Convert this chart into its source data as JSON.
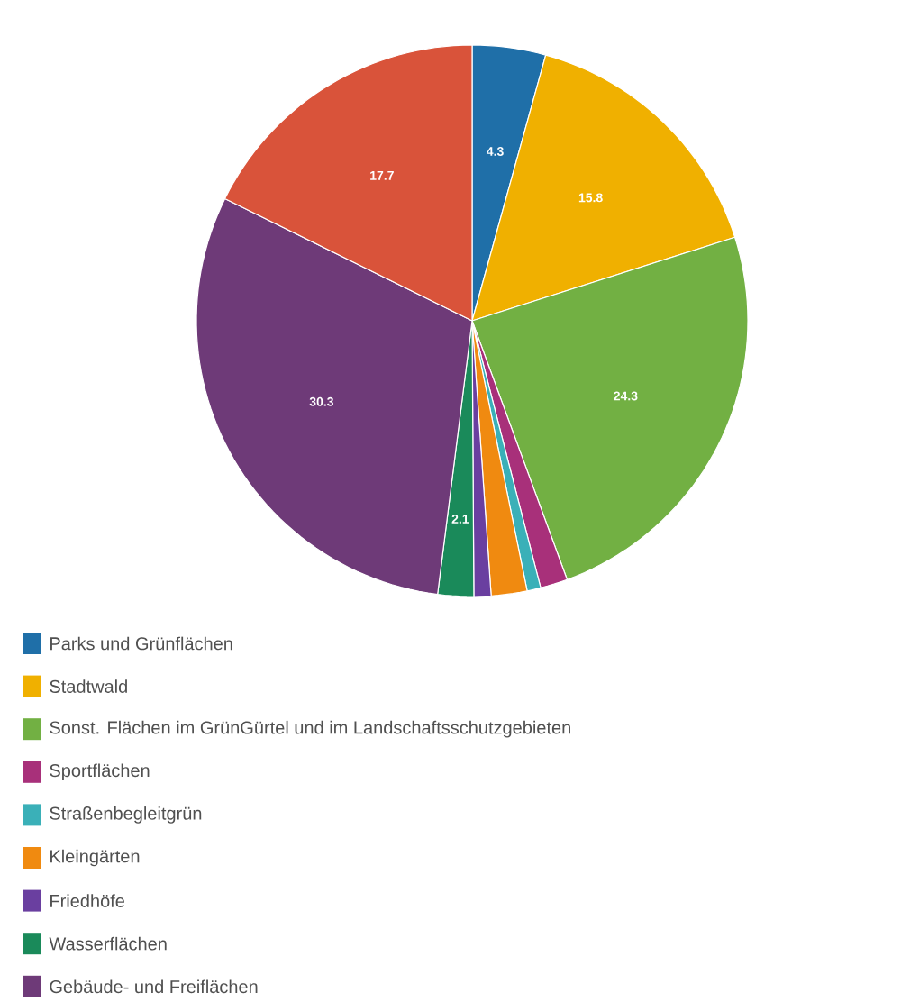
{
  "chart_data": {
    "type": "pie",
    "categories": [
      "Parks und Grünflächen",
      "Stadtwald",
      "Sonst. Flächen im GrünGürtel und im Landschaftsschutzgebieten",
      "Sportflächen",
      "Straßenbegleitgrün",
      "Kleingärten",
      "Friedhöfe",
      "Wasserflächen",
      "Gebäude- und Freiflächen",
      null
    ],
    "values": [
      4.3,
      15.8,
      24.3,
      1.6,
      0.8,
      2.1,
      1.0,
      2.1,
      30.3,
      17.7
    ],
    "value_labels": [
      "4.3",
      "15.8",
      "24.3",
      null,
      null,
      null,
      null,
      "2.1",
      "30.3",
      "17.7"
    ],
    "colors": [
      "#1f6fa8",
      "#f0b000",
      "#72b043",
      "#a8307a",
      "#3ab0b8",
      "#f08a10",
      "#6a3fa0",
      "#1a8a5a",
      "#6e3a78",
      "#d9533a"
    ],
    "legend": "bottom"
  }
}
